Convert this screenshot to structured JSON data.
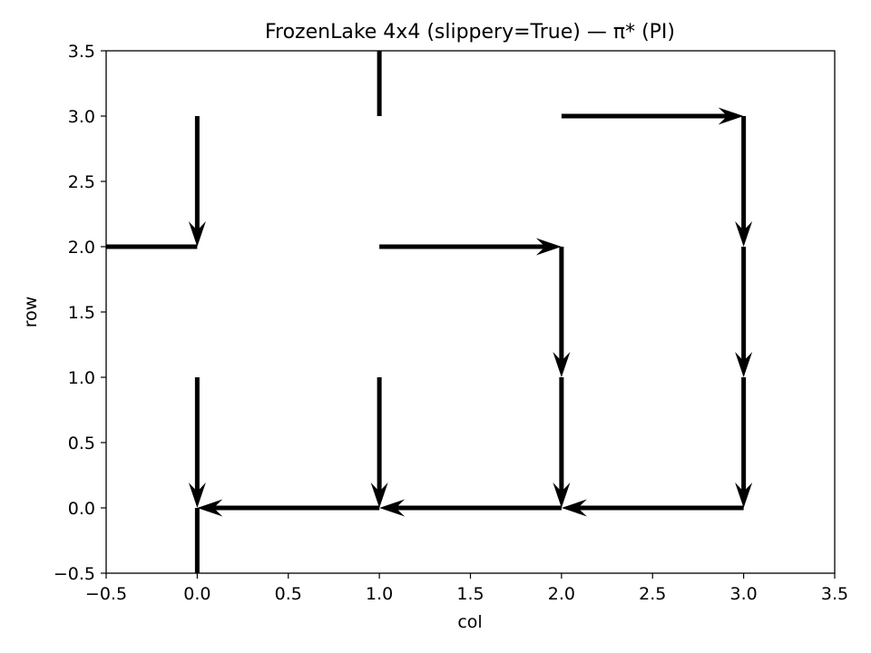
{
  "chart_data": {
    "type": "quiver",
    "title": "FrozenLake 4x4 (slippery=True) — π* (PI)",
    "xlabel": "col",
    "ylabel": "row",
    "xlim": [
      -0.5,
      3.5
    ],
    "ylim": [
      -0.5,
      3.5
    ],
    "xticks": [
      -0.5,
      0.0,
      0.5,
      1.0,
      1.5,
      2.0,
      2.5,
      3.0,
      3.5
    ],
    "yticks": [
      -0.5,
      0.0,
      0.5,
      1.0,
      1.5,
      2.0,
      2.5,
      3.0,
      3.5
    ],
    "xtick_labels": [
      "−0.5",
      "0.0",
      "0.5",
      "1.0",
      "1.5",
      "2.0",
      "2.5",
      "3.0",
      "3.5"
    ],
    "ytick_labels": [
      "−0.5",
      "0.0",
      "0.5",
      "1.0",
      "1.5",
      "2.0",
      "2.5",
      "3.0",
      "3.5"
    ],
    "grid": false,
    "color": "#000000",
    "arrows": [
      {
        "x": 0,
        "y": 3,
        "dx": 0,
        "dy": -1,
        "head": true
      },
      {
        "x": 1,
        "y": 3,
        "dx": 0,
        "dy": 1,
        "head": false
      },
      {
        "x": 2,
        "y": 3,
        "dx": 1,
        "dy": 0,
        "head": true
      },
      {
        "x": 3,
        "y": 3,
        "dx": 0,
        "dy": -1,
        "head": true
      },
      {
        "x": 0,
        "y": 2,
        "dx": -1,
        "dy": 0,
        "head": false
      },
      {
        "x": 1,
        "y": 2,
        "dx": 1,
        "dy": 0,
        "head": true
      },
      {
        "x": 2,
        "y": 2,
        "dx": 0,
        "dy": -1,
        "head": true
      },
      {
        "x": 3,
        "y": 2,
        "dx": 0,
        "dy": -1,
        "head": true
      },
      {
        "x": 0,
        "y": 1,
        "dx": 0,
        "dy": -1,
        "head": true
      },
      {
        "x": 1,
        "y": 1,
        "dx": 0,
        "dy": -1,
        "head": true
      },
      {
        "x": 2,
        "y": 1,
        "dx": 0,
        "dy": -1,
        "head": true
      },
      {
        "x": 3,
        "y": 1,
        "dx": 0,
        "dy": -1,
        "head": true
      },
      {
        "x": 0,
        "y": 0,
        "dx": 0,
        "dy": -1,
        "head": false
      },
      {
        "x": 1,
        "y": 0,
        "dx": -1,
        "dy": 0,
        "head": true
      },
      {
        "x": 2,
        "y": 0,
        "dx": -1,
        "dy": 0,
        "head": true
      },
      {
        "x": 3,
        "y": 0,
        "dx": -1,
        "dy": 0,
        "head": true
      }
    ]
  }
}
